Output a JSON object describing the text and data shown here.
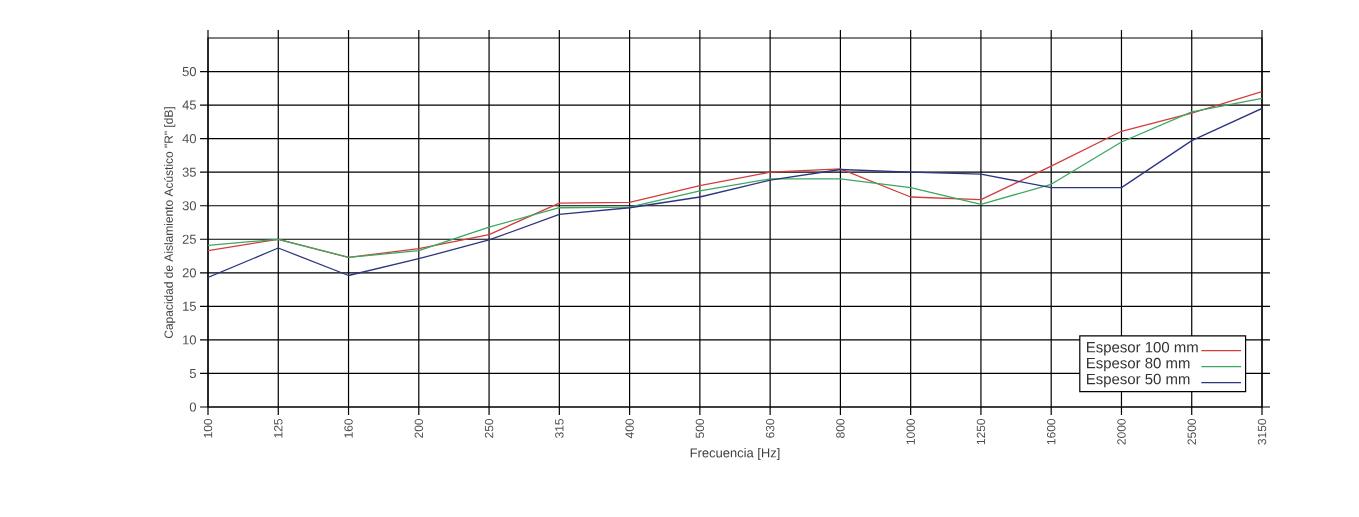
{
  "chart_data": {
    "type": "line",
    "xlabel": "Frecuencia [Hz]",
    "ylabel": "Capacidad de Aislamiento Acústico \"R\" [dB]",
    "categories": [
      "100",
      "125",
      "160",
      "200",
      "250",
      "315",
      "400",
      "500",
      "630",
      "800",
      "1000",
      "1250",
      "1600",
      "2000",
      "2500",
      "3150"
    ],
    "ylim": [
      0,
      55
    ],
    "yticks": [
      0,
      5,
      10,
      15,
      20,
      25,
      30,
      35,
      40,
      45,
      50
    ],
    "grid": true,
    "legend": "bottom right",
    "marker": "none",
    "line_style": "solid",
    "series": [
      {
        "name": "Espesor    100 mm",
        "color": "#d23c3c",
        "values": [
          23.3,
          25,
          22.3,
          23.6,
          25.7,
          30.4,
          30.5,
          33,
          35,
          35.5,
          31.3,
          30.9,
          35.9,
          41.1,
          43.8,
          47
        ]
      },
      {
        "name": "Espesor      80 mm",
        "color": "#3aa860",
        "values": [
          24.1,
          25,
          22.3,
          23.3,
          26.8,
          29.7,
          29.8,
          32.2,
          34,
          34,
          32.7,
          30.2,
          33.2,
          39.5,
          44,
          46
        ]
      },
      {
        "name": "Espesor      50 mm",
        "color": "#2e3580",
        "values": [
          19.3,
          23.7,
          19.6,
          22.1,
          24.9,
          28.7,
          29.7,
          31.3,
          33.8,
          35.4,
          35,
          34.7,
          32.7,
          32.7,
          39.7,
          44.5
        ]
      }
    ]
  }
}
